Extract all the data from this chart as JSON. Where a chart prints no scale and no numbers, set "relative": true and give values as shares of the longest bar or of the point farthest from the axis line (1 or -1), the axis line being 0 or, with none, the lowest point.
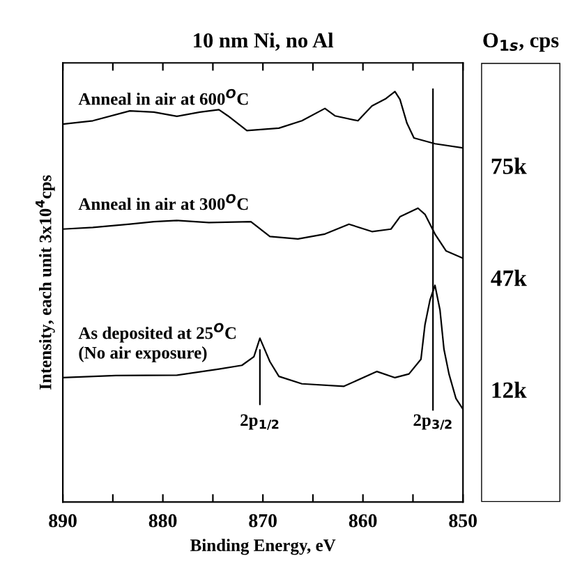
{
  "chart_data": [
    {
      "type": "line",
      "title": "10 nm Ni, no Al",
      "xlabel": "Binding Energy, eV",
      "ylabel": "Intensity, each unit 3x10$^{4}$cps",
      "relative": true,
      "tick_labels": "x",
      "xlim": [
        890,
        850
      ],
      "xticks": [
        890,
        {
          "value": 885,
          "label": null
        },
        880,
        {
          "value": 875,
          "label": null
        },
        870,
        {
          "value": 865,
          "label": null
        },
        860,
        {
          "value": 855,
          "label": null
        },
        850
      ],
      "series": [
        {
          "name": "Anneal in air at 600$^{O}$C",
          "color": "#000000",
          "x": [
            890,
            887.0,
            883.3,
            880.9,
            878.6,
            876.3,
            874.4,
            873.5,
            871.6,
            868.4,
            866.1,
            863.8,
            862.8,
            860.5,
            859.1,
            857.7,
            856.8,
            856.3,
            855.6,
            854.9,
            852.8,
            850
          ],
          "values": [
            0.921,
            0.929,
            0.953,
            0.95,
            0.94,
            0.95,
            0.956,
            0.941,
            0.905,
            0.911,
            0.929,
            0.959,
            0.941,
            0.929,
            0.965,
            0.983,
            1,
            0.981,
            0.923,
            0.887,
            0.873,
            0.863
          ]
        },
        {
          "name": "Anneal in air at 300$^{O}$C",
          "color": "#000000",
          "x": [
            890,
            887.0,
            883.3,
            880.9,
            878.6,
            875.4,
            871.2,
            869.3,
            866.5,
            863.8,
            861.4,
            859.1,
            857.2,
            856.3,
            854.5,
            853.8,
            852.8,
            851.7,
            850
          ],
          "values": [
            0.665,
            0.669,
            0.677,
            0.683,
            0.686,
            0.681,
            0.683,
            0.647,
            0.641,
            0.653,
            0.677,
            0.659,
            0.665,
            0.695,
            0.716,
            0.701,
            0.653,
            0.612,
            0.594
          ]
        },
        {
          "name": "As deposited at 25$^{O}$C\n(No air exposure)",
          "color": "#000000",
          "x": [
            890,
            884.7,
            878.6,
            874.4,
            872.1,
            870.9,
            870.3,
            869.3,
            868.4,
            866.1,
            861.9,
            858.6,
            856.8,
            855.4,
            854.2,
            853.8,
            853.3,
            852.8,
            852.3,
            851.9,
            851.4,
            850.7,
            850
          ],
          "values": [
            0.303,
            0.308,
            0.309,
            0.324,
            0.333,
            0.354,
            0.399,
            0.342,
            0.306,
            0.288,
            0.282,
            0.318,
            0.303,
            0.312,
            0.348,
            0.432,
            0.492,
            0.528,
            0.468,
            0.372,
            0.312,
            0.252,
            0.226
          ]
        }
      ],
      "annotations": [
        {
          "text": "2p$_{1/2}$",
          "x": 870.3,
          "y": 0.399
        }
      ],
      "ref_lines": [
        {
          "axis": "x",
          "value": 853,
          "label": "2p$_{3/2}$"
        }
      ]
    },
    {
      "type": "other",
      "title": "O$_{1s}$, cps",
      "annotations": [
        "75k",
        "47k",
        "12k"
      ]
    }
  ]
}
